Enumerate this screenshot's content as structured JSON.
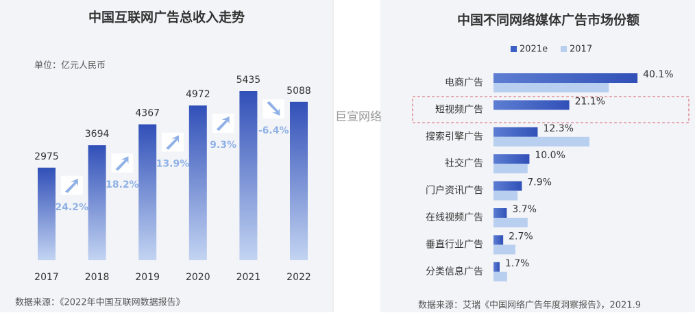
{
  "charts": [
    {
      "chart_data": {
        "type": "bar",
        "title": "中国互联网广告总收入走势",
        "unit": "单位：亿元人民币",
        "categories": [
          "2017",
          "2018",
          "2019",
          "2020",
          "2021",
          "2022"
        ],
        "values": [
          2975,
          3694,
          4367,
          4972,
          5435,
          5088
        ],
        "color": "#3b5fc4",
        "growth": {
          "values": [
            24.2,
            18.2,
            13.9,
            9.3,
            -6.4
          ],
          "value_labels": [
            "24.2%",
            "18.2%",
            "13.9%",
            "9.3%",
            "-6.4%"
          ],
          "color": "#8fb1e6"
        },
        "source": "数据来源：《2022年中国互联网数据报告》"
      }
    },
    {
      "chart_data": {
        "type": "hbar",
        "title": "中国不同网络媒体广告市场份额",
        "categories": [
          "电商广告",
          "短视频广告",
          "搜索引擎广告",
          "社交广告",
          "门户资讯广告",
          "在线视频广告",
          "垂直行业广告",
          "分类信息广告"
        ],
        "series": [
          {
            "name": "2021e",
            "color": "#3b5fc4",
            "values": [
              40.1,
              21.1,
              12.3,
              10.0,
              7.9,
              3.7,
              2.7,
              1.7
            ],
            "value_labels": [
              "40.1%",
              "21.1%",
              "12.3%",
              "10.0%",
              "7.9%",
              "3.7%",
              "2.7%",
              "1.7%"
            ]
          },
          {
            "name": "2017",
            "color": "#b9cff0",
            "values": [
              32.1,
              null,
              26.7,
              9.5,
              6.7,
              9.5,
              6.1,
              3.8
            ]
          }
        ],
        "highlight": 1,
        "source": "数据来源：艾瑞《中国网络广告年度洞察报告》，2021.9"
      }
    }
  ],
  "watermark": "巨宣网络"
}
